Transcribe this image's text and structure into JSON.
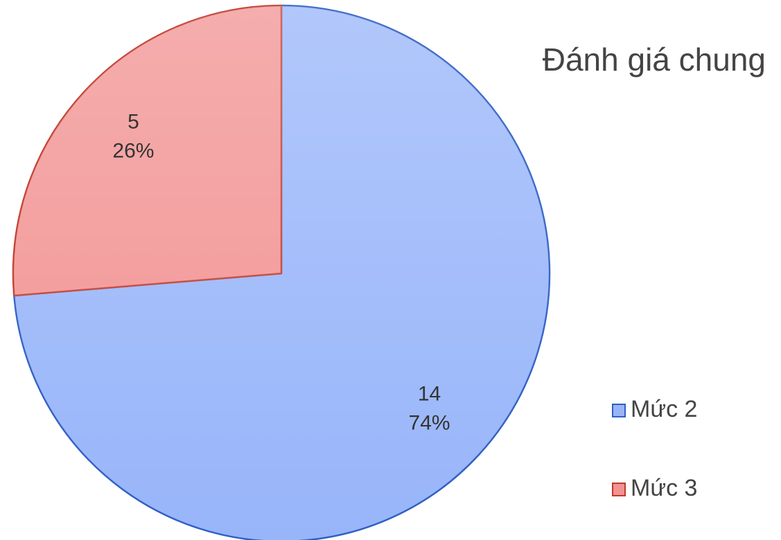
{
  "chart_data": {
    "type": "pie",
    "title": "Đánh giá chung",
    "categories": [
      "Mức 2",
      "Mức 3"
    ],
    "values": [
      14,
      5
    ],
    "percent_labels": [
      "74%",
      "26%"
    ],
    "colors": [
      "#98b5fa",
      "#f29292"
    ],
    "edge_colors": [
      "#2f5fc4",
      "#c0392b"
    ],
    "legend": "right"
  }
}
